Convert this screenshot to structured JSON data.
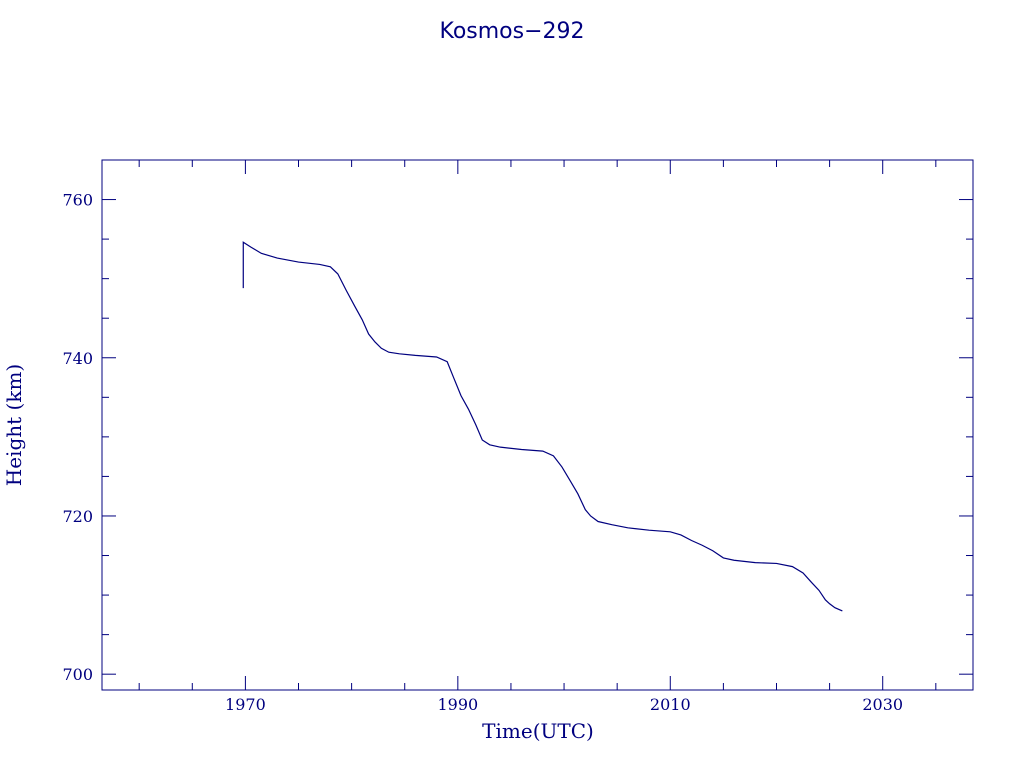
{
  "chart_data": {
    "type": "line",
    "title": "Kosmos−292",
    "xlabel": "Time(UTC)",
    "ylabel": "Height (km)",
    "xlim": [
      1956.5,
      2038.5
    ],
    "ylim": [
      698,
      765
    ],
    "x_ticks": [
      1970,
      1990,
      2010,
      2030
    ],
    "y_ticks": [
      700,
      720,
      740,
      760
    ],
    "grid": false,
    "color": "#00007f",
    "series": [
      {
        "x": [
          1969.8,
          1969.8,
          1970.5,
          1971.5,
          1973,
          1975,
          1977,
          1978,
          1978.7,
          1979.5,
          1980.3,
          1981,
          1981.6,
          1982.2,
          1982.8,
          1983.5,
          1984.5,
          1986,
          1988,
          1989,
          1989.6,
          1990.3,
          1991,
          1991.7,
          1992.3,
          1993,
          1994,
          1996,
          1998,
          1999,
          1999.8,
          2000.6,
          2001.3,
          2002,
          2002.5,
          2003.2,
          2004.5,
          2006,
          2008,
          2010,
          2011,
          2012,
          2013,
          2014,
          2015,
          2016,
          2018,
          2020,
          2021.5,
          2022.5,
          2023.3,
          2024,
          2024.6,
          2025,
          2025.5,
          2026.2
        ],
        "y": [
          748.8,
          754.6,
          754.0,
          753.2,
          752.6,
          752.1,
          751.8,
          751.5,
          750.6,
          748.5,
          746.5,
          744.8,
          743.0,
          742.0,
          741.2,
          740.7,
          740.5,
          740.3,
          740.1,
          739.5,
          737.5,
          735.2,
          733.5,
          731.5,
          729.6,
          729.0,
          728.7,
          728.4,
          728.2,
          727.6,
          726.2,
          724.4,
          722.8,
          720.8,
          720.0,
          719.3,
          718.9,
          718.5,
          718.2,
          718.0,
          717.6,
          716.9,
          716.3,
          715.6,
          714.7,
          714.4,
          714.1,
          714.0,
          713.6,
          712.8,
          711.6,
          710.6,
          709.4,
          708.9,
          708.4,
          708.0
        ]
      }
    ]
  }
}
